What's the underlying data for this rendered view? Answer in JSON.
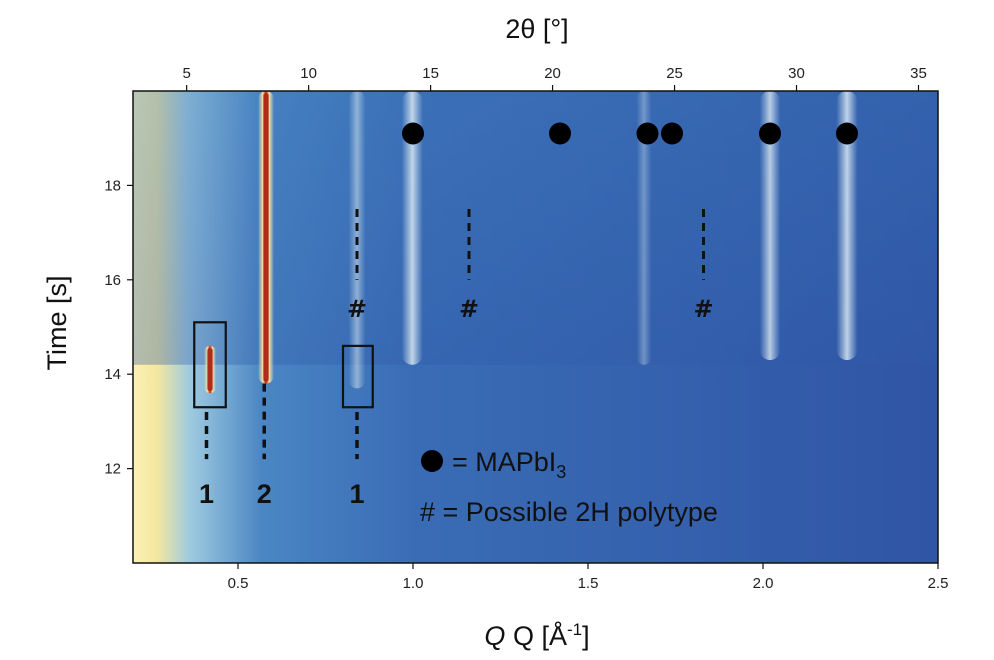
{
  "chart_data": {
    "type": "heatmap",
    "xlabel": "Q [Å",
    "xlabel_sup": "-1",
    "xlabel_close": "]",
    "x2label": "2θ [°]",
    "ylabel": "Time [s]",
    "xlim": [
      0.2,
      2.5
    ],
    "ylim": [
      10.0,
      20.0
    ],
    "x2lim": [
      2.8,
      35.8
    ],
    "xticks": [
      0.5,
      1.0,
      1.5,
      2.0,
      2.5
    ],
    "xtick_labels": [
      "0.5",
      "1.0",
      "1.5",
      "2.0",
      "2.5"
    ],
    "x2ticks": [
      5,
      10,
      15,
      20,
      25,
      30,
      35
    ],
    "x2tick_labels": [
      "5",
      "10",
      "15",
      "20",
      "25",
      "30",
      "35"
    ],
    "yticks": [
      12,
      14,
      16,
      18
    ],
    "ytick_labels": [
      "12",
      "14",
      "16",
      "18"
    ],
    "colors": {
      "background": "#2f5aa8",
      "faint": "#3f74bc",
      "peak": "#dcecf4",
      "hot_low": "#f6e7a6",
      "hot_high": "#b42a1a",
      "marker": "#000000"
    },
    "intense_peaks": [
      {
        "q": 0.58,
        "t_start": 13.8,
        "t_end": 20.0,
        "color": "#b42a1a"
      },
      {
        "q": 0.42,
        "t_start": 13.6,
        "t_end": 14.6,
        "color": "#b42a1a"
      }
    ],
    "streaks": [
      {
        "q": 0.84,
        "t_start": 13.7,
        "t_end": 20.0,
        "intensity": 0.5
      },
      {
        "q": 0.998,
        "t_start": 14.2,
        "t_end": 20.0,
        "intensity": 0.8
      },
      {
        "q": 2.02,
        "t_start": 14.3,
        "t_end": 20.0,
        "intensity": 0.75
      },
      {
        "q": 2.24,
        "t_start": 14.3,
        "t_end": 20.0,
        "intensity": 0.8
      },
      {
        "q": 1.66,
        "t_start": 14.2,
        "t_end": 20.0,
        "intensity": 0.35
      }
    ],
    "mapbi3_markers": [
      {
        "q": 1.0,
        "t": 19.1
      },
      {
        "q": 1.42,
        "t": 19.1
      },
      {
        "q": 1.67,
        "t": 19.1
      },
      {
        "q": 1.74,
        "t": 19.1
      },
      {
        "q": 2.02,
        "t": 19.1
      },
      {
        "q": 2.24,
        "t": 19.1
      }
    ],
    "polytype_markers": [
      {
        "q": 0.84,
        "t_label": 15.4,
        "dash_top": 17.5,
        "dash_bottom": 16.0,
        "label": "#"
      },
      {
        "q": 1.16,
        "t_label": 15.4,
        "dash_top": 17.5,
        "dash_bottom": 16.0,
        "label": "#"
      },
      {
        "q": 1.83,
        "t_label": 15.4,
        "dash_top": 17.5,
        "dash_bottom": 16.0,
        "label": "#"
      }
    ],
    "phase_boxes": [
      {
        "q_min": 0.375,
        "q_max": 0.465,
        "t_min": 13.3,
        "t_max": 15.1
      },
      {
        "q_min": 0.8,
        "q_max": 0.885,
        "t_min": 13.3,
        "t_max": 14.6
      }
    ],
    "phase_labels": [
      {
        "q": 0.41,
        "label": "1",
        "dash_top": 13.2,
        "dash_bottom": 12.2
      },
      {
        "q": 0.575,
        "label": "2",
        "dash_top": 13.8,
        "dash_bottom": 12.2
      },
      {
        "q": 0.84,
        "label": "1",
        "dash_top": 13.2,
        "dash_bottom": 12.2
      }
    ],
    "legend": [
      {
        "symbol": "circle",
        "text": "= MAPbI",
        "sub": "3"
      },
      {
        "symbol": "hash",
        "text": "# = Possible 2H polytype"
      }
    ],
    "legend_placement": "lower-right",
    "grid": false
  }
}
